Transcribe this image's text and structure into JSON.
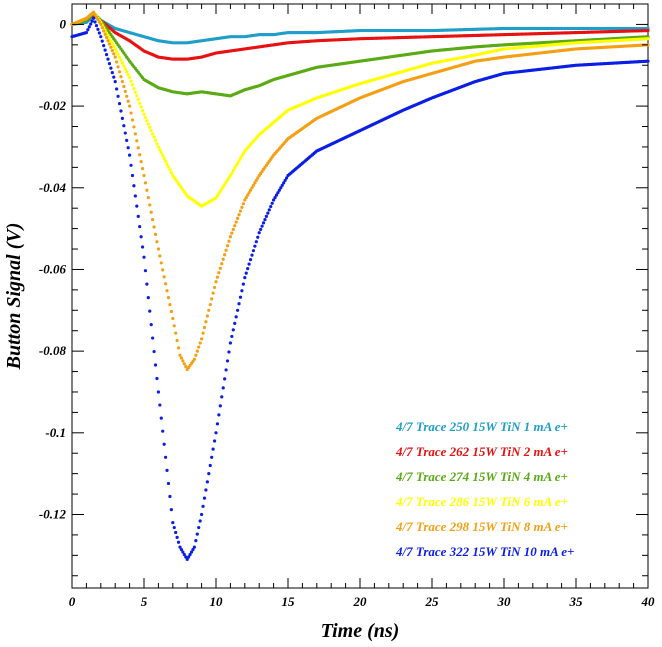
{
  "chart_data": {
    "type": "scatter",
    "xlabel": "Time (ns)",
    "ylabel": "Button Signal (V)",
    "xlim": [
      0,
      40
    ],
    "ylim": [
      -0.138,
      0.005
    ],
    "grid": false,
    "legend_position": "bottom-right",
    "x_ticks": [
      0,
      5,
      10,
      15,
      20,
      25,
      30,
      35,
      40
    ],
    "y_ticks": [
      0,
      -0.02,
      -0.04,
      -0.06,
      -0.08,
      -0.1,
      -0.12
    ],
    "x_tick_labels": [
      "0",
      "5",
      "10",
      "15",
      "20",
      "25",
      "30",
      "35",
      "40"
    ],
    "y_tick_labels": [
      "0",
      "-0.02",
      "-0.04",
      "-0.06",
      "-0.08",
      "-0.1",
      "-0.12"
    ],
    "series": [
      {
        "name": "4/7 Trace 250 15W TiN 1 mA e+",
        "color": "#1e9ec8",
        "points": [
          [
            0,
            0
          ],
          [
            1,
            0.0005
          ],
          [
            1.5,
            0.002
          ],
          [
            2,
            0.001
          ],
          [
            3,
            -0.001
          ],
          [
            4,
            -0.002
          ],
          [
            5,
            -0.003
          ],
          [
            6,
            -0.004
          ],
          [
            7,
            -0.0045
          ],
          [
            8,
            -0.0045
          ],
          [
            9,
            -0.004
          ],
          [
            10,
            -0.0035
          ],
          [
            11,
            -0.003
          ],
          [
            12,
            -0.003
          ],
          [
            13,
            -0.0025
          ],
          [
            14,
            -0.0025
          ],
          [
            15,
            -0.002
          ],
          [
            17,
            -0.002
          ],
          [
            20,
            -0.0015
          ],
          [
            25,
            -0.0015
          ],
          [
            30,
            -0.001
          ],
          [
            35,
            -0.001
          ],
          [
            40,
            -0.001
          ]
        ]
      },
      {
        "name": "4/7 Trace 262 15W TiN 2 mA e+",
        "color": "#e81010",
        "points": [
          [
            0,
            0
          ],
          [
            1,
            0.001
          ],
          [
            1.5,
            0.0025
          ],
          [
            2,
            0.001
          ],
          [
            3,
            -0.002
          ],
          [
            4,
            -0.004
          ],
          [
            5,
            -0.0065
          ],
          [
            6,
            -0.008
          ],
          [
            7,
            -0.0085
          ],
          [
            8,
            -0.0085
          ],
          [
            9,
            -0.008
          ],
          [
            10,
            -0.007
          ],
          [
            11,
            -0.0065
          ],
          [
            12,
            -0.006
          ],
          [
            13,
            -0.0055
          ],
          [
            14,
            -0.005
          ],
          [
            15,
            -0.0045
          ],
          [
            17,
            -0.004
          ],
          [
            20,
            -0.0035
          ],
          [
            25,
            -0.003
          ],
          [
            30,
            -0.0025
          ],
          [
            35,
            -0.002
          ],
          [
            40,
            -0.0015
          ]
        ]
      },
      {
        "name": "4/7 Trace 274 15W TiN 4 mA e+",
        "color": "#5aaa14",
        "points": [
          [
            0,
            0
          ],
          [
            1,
            0.001
          ],
          [
            1.5,
            0.0028
          ],
          [
            2,
            0.001
          ],
          [
            3,
            -0.004
          ],
          [
            4,
            -0.009
          ],
          [
            5,
            -0.0135
          ],
          [
            6,
            -0.0155
          ],
          [
            7,
            -0.0165
          ],
          [
            8,
            -0.017
          ],
          [
            9,
            -0.0165
          ],
          [
            10,
            -0.017
          ],
          [
            11,
            -0.0175
          ],
          [
            12,
            -0.016
          ],
          [
            13,
            -0.015
          ],
          [
            14,
            -0.0135
          ],
          [
            15,
            -0.0125
          ],
          [
            17,
            -0.0105
          ],
          [
            20,
            -0.009
          ],
          [
            23,
            -0.0075
          ],
          [
            25,
            -0.0065
          ],
          [
            28,
            -0.0055
          ],
          [
            30,
            -0.005
          ],
          [
            35,
            -0.004
          ],
          [
            40,
            -0.003
          ]
        ]
      },
      {
        "name": "4/7 Trace 286 15W TiN 6 mA e+",
        "color": "#ffff00",
        "points": [
          [
            0,
            0
          ],
          [
            1,
            0.0015
          ],
          [
            1.5,
            0.003
          ],
          [
            2,
            0.0005
          ],
          [
            3,
            -0.006
          ],
          [
            4,
            -0.013
          ],
          [
            5,
            -0.022
          ],
          [
            6,
            -0.03
          ],
          [
            7,
            -0.037
          ],
          [
            8,
            -0.042
          ],
          [
            9,
            -0.0445
          ],
          [
            10,
            -0.0425
          ],
          [
            11,
            -0.037
          ],
          [
            12,
            -0.031
          ],
          [
            13,
            -0.027
          ],
          [
            14,
            -0.024
          ],
          [
            15,
            -0.021
          ],
          [
            17,
            -0.018
          ],
          [
            20,
            -0.0145
          ],
          [
            23,
            -0.0115
          ],
          [
            25,
            -0.0095
          ],
          [
            28,
            -0.0075
          ],
          [
            30,
            -0.006
          ],
          [
            35,
            -0.0045
          ],
          [
            40,
            -0.0035
          ]
        ]
      },
      {
        "name": "4/7 Trace 298 15W TiN 8 mA e+",
        "color": "#f5a014",
        "points": [
          [
            0,
            0
          ],
          [
            1,
            0.0015
          ],
          [
            1.5,
            0.003
          ],
          [
            2,
            0
          ],
          [
            3,
            -0.008
          ],
          [
            4,
            -0.02
          ],
          [
            5,
            -0.037
          ],
          [
            6,
            -0.055
          ],
          [
            7,
            -0.072
          ],
          [
            7.5,
            -0.081
          ],
          [
            8,
            -0.0845
          ],
          [
            8.5,
            -0.082
          ],
          [
            9,
            -0.077
          ],
          [
            10,
            -0.063
          ],
          [
            11,
            -0.052
          ],
          [
            12,
            -0.043
          ],
          [
            13,
            -0.037
          ],
          [
            14,
            -0.032
          ],
          [
            15,
            -0.028
          ],
          [
            17,
            -0.023
          ],
          [
            20,
            -0.018
          ],
          [
            23,
            -0.014
          ],
          [
            25,
            -0.012
          ],
          [
            28,
            -0.009
          ],
          [
            30,
            -0.008
          ],
          [
            35,
            -0.006
          ],
          [
            40,
            -0.005
          ]
        ]
      },
      {
        "name": "4/7 Trace 322 15W TiN 10 mA e+",
        "color": "#0a1ee6",
        "points": [
          [
            0,
            -0.003
          ],
          [
            1,
            -0.002
          ],
          [
            1.5,
            0.0015
          ],
          [
            2,
            -0.003
          ],
          [
            3,
            -0.014
          ],
          [
            4,
            -0.032
          ],
          [
            5,
            -0.057
          ],
          [
            6,
            -0.09
          ],
          [
            6.5,
            -0.106
          ],
          [
            7,
            -0.122
          ],
          [
            7.5,
            -0.128
          ],
          [
            8,
            -0.131
          ],
          [
            8.5,
            -0.128
          ],
          [
            9,
            -0.12
          ],
          [
            10,
            -0.1
          ],
          [
            11,
            -0.078
          ],
          [
            12,
            -0.062
          ],
          [
            13,
            -0.051
          ],
          [
            14,
            -0.043
          ],
          [
            15,
            -0.037
          ],
          [
            17,
            -0.031
          ],
          [
            20,
            -0.026
          ],
          [
            23,
            -0.021
          ],
          [
            25,
            -0.018
          ],
          [
            28,
            -0.014
          ],
          [
            30,
            -0.012
          ],
          [
            35,
            -0.01
          ],
          [
            40,
            -0.009
          ]
        ]
      }
    ]
  }
}
